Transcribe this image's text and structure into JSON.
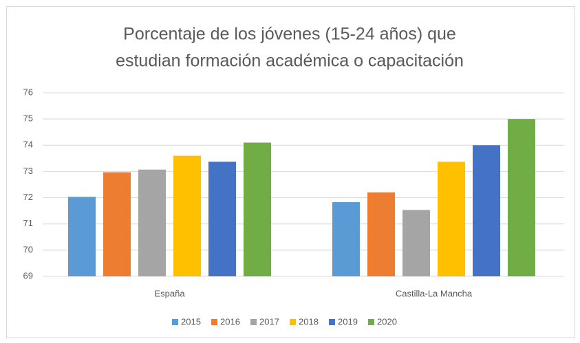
{
  "chart_data": {
    "type": "bar",
    "title": "Porcentaje de los jóvenes (15-24 años) que estudian formación académica o capacitación",
    "categories": [
      "España",
      "Castilla-La Mancha"
    ],
    "series": [
      {
        "name": "2015",
        "color": "#5b9bd5",
        "values": [
          72.03,
          71.83
        ]
      },
      {
        "name": "2016",
        "color": "#ed7d31",
        "values": [
          72.97,
          72.2
        ]
      },
      {
        "name": "2017",
        "color": "#a5a5a5",
        "values": [
          73.07,
          71.53
        ]
      },
      {
        "name": "2018",
        "color": "#ffc000",
        "values": [
          73.6,
          73.37
        ]
      },
      {
        "name": "2019",
        "color": "#4472c4",
        "values": [
          73.37,
          74.0
        ]
      },
      {
        "name": "2020",
        "color": "#70ad47",
        "values": [
          74.1,
          75.0
        ]
      }
    ],
    "ylim": [
      69,
      76
    ],
    "yticks": [
      69,
      70,
      71,
      72,
      73,
      74,
      75,
      76
    ],
    "grid": true,
    "legend": "bottom"
  }
}
